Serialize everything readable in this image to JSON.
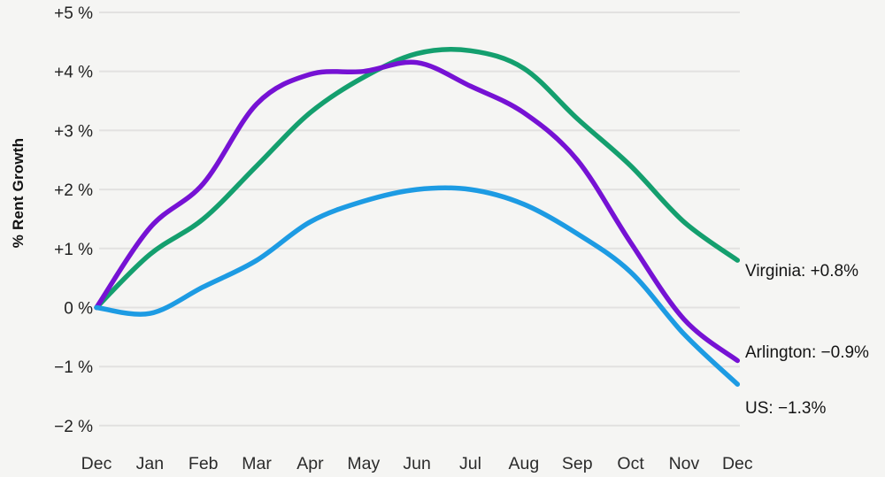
{
  "chart_data": {
    "type": "line",
    "title": "",
    "ylabel": "% Rent Growth",
    "xlabel": "",
    "x_categories": [
      "Dec",
      "Jan",
      "Feb",
      "Mar",
      "Apr",
      "May",
      "Jun",
      "Jul",
      "Aug",
      "Sep",
      "Oct",
      "Nov",
      "Dec"
    ],
    "series": [
      {
        "name": "Virginia",
        "color": "#149f6e",
        "values": [
          0,
          0.9,
          1.5,
          2.4,
          3.3,
          3.9,
          4.3,
          4.35,
          4.05,
          3.2,
          2.4,
          1.45,
          0.8
        ],
        "end_label": "Virginia: +0.8%"
      },
      {
        "name": "Arlington",
        "color": "#7612d4",
        "values": [
          0,
          1.35,
          2.1,
          3.45,
          3.95,
          4.0,
          4.15,
          3.75,
          3.3,
          2.5,
          1.1,
          -0.2,
          -0.9
        ],
        "end_label": "Arlington: −0.9%"
      },
      {
        "name": "US",
        "color": "#1d9be3",
        "values": [
          0,
          -0.1,
          0.35,
          0.8,
          1.45,
          1.8,
          2.0,
          2.0,
          1.75,
          1.25,
          0.6,
          -0.45,
          -1.3
        ],
        "end_label": "US: −1.3%"
      }
    ],
    "yticks": [
      {
        "value": 5,
        "label": "+5 %"
      },
      {
        "value": 4,
        "label": "+4 %"
      },
      {
        "value": 3,
        "label": "+3 %"
      },
      {
        "value": 2,
        "label": "+2 %"
      },
      {
        "value": 1,
        "label": "+1 %"
      },
      {
        "value": 0,
        "label": "0 %"
      },
      {
        "value": -1,
        "label": "−1 %"
      },
      {
        "value": -2,
        "label": "−2 %"
      }
    ],
    "ylim": [
      -2,
      5
    ],
    "grid": true,
    "legend_position": "line-end-labels-right",
    "colors": {
      "background": "#f5f5f3",
      "gridline": "#e2e1e0",
      "tick_text": "#212121",
      "annotation_text": "#141414"
    }
  }
}
